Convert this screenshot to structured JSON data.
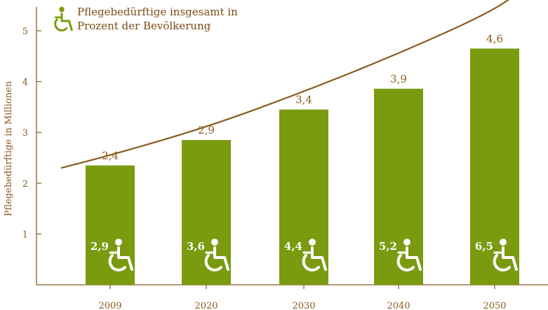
{
  "chart_data": {
    "type": "bar",
    "categories": [
      "2009",
      "2020",
      "2030",
      "2040",
      "2050"
    ],
    "values": [
      2.35,
      2.85,
      3.45,
      3.86,
      4.65
    ],
    "value_labels": [
      "2,4",
      "2,9",
      "3,4",
      "3,9",
      "4,6"
    ],
    "percent_labels": [
      "2,9",
      "3,6",
      "4,4",
      "5,2",
      "6,5"
    ],
    "line_values": [
      2.55,
      3.1,
      3.8,
      4.55,
      5.4
    ],
    "ylabel": "Pflegebedürftige in Millionen",
    "ylim": [
      0,
      5.3
    ],
    "yticks": [
      1,
      2,
      3,
      4,
      5
    ],
    "legend": {
      "line1": "Pflegebedürftige insgesamt in",
      "line2": "Prozent der Bevölkerung",
      "placement": "top-left"
    },
    "colors": {
      "bar": "#7a9a10",
      "line": "#8a5a1e",
      "axis": "#8a5a1e",
      "text": "#8a5a1e"
    },
    "icon": "wheelchair-icon"
  }
}
